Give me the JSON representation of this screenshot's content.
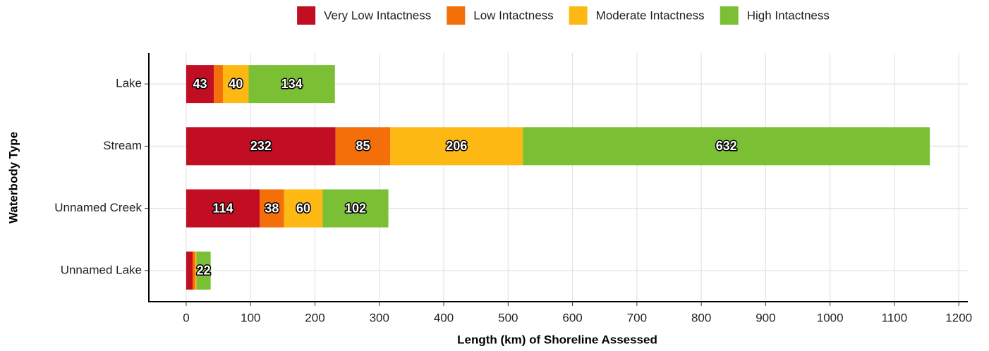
{
  "chart_data": {
    "type": "stacked_barh",
    "categories": [
      "Lake",
      "Stream",
      "Unnamed Creek",
      "Unnamed Lake"
    ],
    "series": [
      {
        "name": "Very Low Intactness",
        "color": "#c20e22",
        "values": [
          43,
          232,
          114,
          10
        ],
        "value_labels": [
          "43",
          "232",
          "114",
          null
        ]
      },
      {
        "name": "Low Intactness",
        "color": "#f46e0a",
        "values": [
          14,
          85,
          38,
          4
        ],
        "value_labels": [
          null,
          "85",
          "38",
          null
        ]
      },
      {
        "name": "Moderate Intactness",
        "color": "#fdb813",
        "values": [
          40,
          206,
          60,
          2
        ],
        "value_labels": [
          "40",
          "206",
          "60",
          null
        ]
      },
      {
        "name": "High Intactness",
        "color": "#7bbf35",
        "values": [
          134,
          632,
          102,
          22
        ],
        "value_labels": [
          "134",
          "632",
          "102",
          "22"
        ]
      }
    ],
    "xlabel": "Length (km) of Shoreline Assessed",
    "ylabel": "Waterbody Type",
    "xlim": [
      -58,
      1214
    ],
    "xticks": [
      0,
      100,
      200,
      300,
      400,
      500,
      600,
      700,
      800,
      900,
      1000,
      1100,
      1200
    ],
    "grid": true,
    "legend": "top"
  }
}
